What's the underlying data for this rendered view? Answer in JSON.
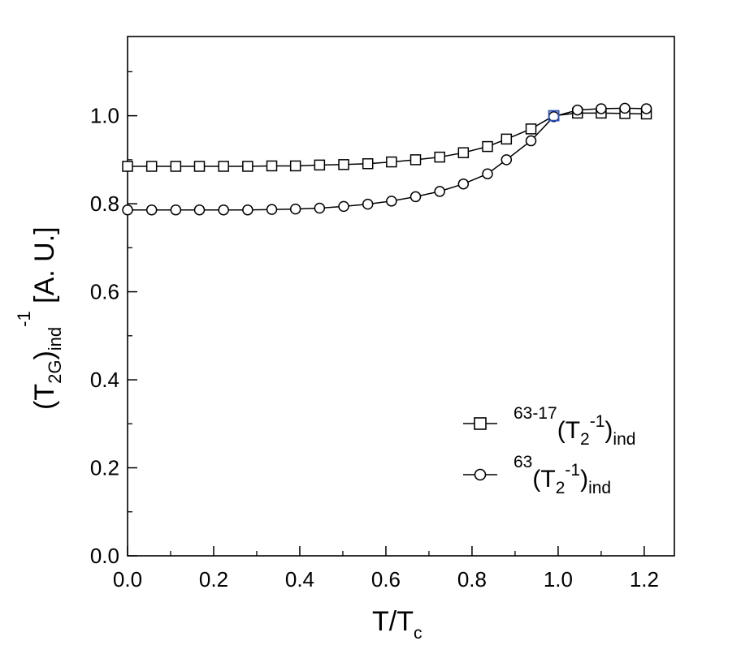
{
  "chart_data": {
    "type": "line",
    "xlabel": {
      "main": "T/T",
      "sub": "c"
    },
    "ylabel": {
      "p1": "(T",
      "sub1": "2G",
      "p2": ")",
      "sub2": "ind",
      "sup": "-1",
      "p3": " [A. U.]"
    },
    "xlim": [
      0.0,
      1.27
    ],
    "ylim": [
      0.0,
      1.18
    ],
    "x_ticks": [
      "0.0",
      "0.2",
      "0.4",
      "0.6",
      "0.8",
      "1.0",
      "1.2"
    ],
    "y_ticks": [
      "0.0",
      "0.2",
      "0.4",
      "0.6",
      "0.8",
      "1.0"
    ],
    "legend_position": "lower-right",
    "series": [
      {
        "name": {
          "sup1": "63-17",
          "p1": "(T",
          "sub1": "2",
          "sup2": "-1",
          "p2": ")",
          "sub2": "ind"
        },
        "marker": "square",
        "x": [
          0.0,
          0.056,
          0.112,
          0.167,
          0.223,
          0.279,
          0.335,
          0.39,
          0.446,
          0.502,
          0.558,
          0.613,
          0.669,
          0.725,
          0.78,
          0.836,
          0.88,
          0.937,
          0.99,
          1.045,
          1.1,
          1.155,
          1.205
        ],
        "y": [
          0.885,
          0.885,
          0.885,
          0.885,
          0.885,
          0.885,
          0.886,
          0.886,
          0.888,
          0.889,
          0.891,
          0.895,
          0.9,
          0.906,
          0.916,
          0.93,
          0.947,
          0.97,
          1.0,
          1.006,
          1.006,
          1.005,
          1.004
        ]
      },
      {
        "name": {
          "sup1": "63",
          "p1": "(T",
          "sub1": "2",
          "sup2": "-1",
          "p2": ")",
          "sub2": "ind"
        },
        "marker": "circle",
        "x": [
          0.0,
          0.056,
          0.112,
          0.167,
          0.223,
          0.279,
          0.335,
          0.39,
          0.446,
          0.502,
          0.558,
          0.613,
          0.669,
          0.725,
          0.78,
          0.836,
          0.88,
          0.937,
          0.99,
          1.045,
          1.1,
          1.155,
          1.205
        ],
        "y": [
          0.786,
          0.786,
          0.786,
          0.786,
          0.786,
          0.786,
          0.787,
          0.788,
          0.79,
          0.794,
          0.799,
          0.806,
          0.816,
          0.828,
          0.845,
          0.868,
          0.9,
          0.943,
          0.998,
          1.013,
          1.016,
          1.017,
          1.016
        ]
      }
    ],
    "highlight_point": {
      "x": 0.99,
      "y": 1.0,
      "color": "#2a52be"
    },
    "colors": {
      "line": "#000000",
      "axes": "#000000",
      "highlight": "#2a52be"
    }
  }
}
